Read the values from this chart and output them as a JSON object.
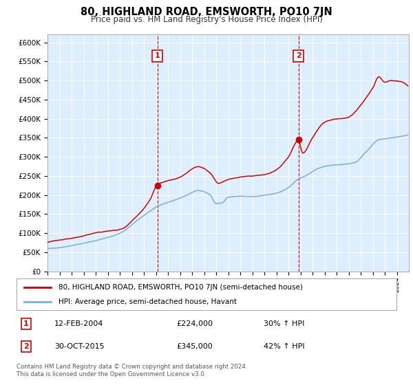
{
  "title": "80, HIGHLAND ROAD, EMSWORTH, PO10 7JN",
  "subtitle": "Price paid vs. HM Land Registry's House Price Index (HPI)",
  "legend_line1": "80, HIGHLAND ROAD, EMSWORTH, PO10 7JN (semi-detached house)",
  "legend_line2": "HPI: Average price, semi-detached house, Havant",
  "annotation1_label": "1",
  "annotation1_date": "12-FEB-2004",
  "annotation1_price": "£224,000",
  "annotation1_hpi": "30% ↑ HPI",
  "annotation2_label": "2",
  "annotation2_date": "30-OCT-2015",
  "annotation2_price": "£345,000",
  "annotation2_hpi": "42% ↑ HPI",
  "footnote": "Contains HM Land Registry data © Crown copyright and database right 2024.\nThis data is licensed under the Open Government Licence v3.0.",
  "sale1_year": 2004.12,
  "sale1_price": 224000,
  "sale2_year": 2015.83,
  "sale2_price": 345000,
  "red_line_color": "#cc0000",
  "blue_line_color": "#7aacdc",
  "chart_bg_color": "#ddeeff",
  "grid_color": "#ffffff",
  "background_color": "#ffffff",
  "ylim": [
    0,
    620000
  ],
  "xlim_start": 1995,
  "xlim_end": 2025
}
